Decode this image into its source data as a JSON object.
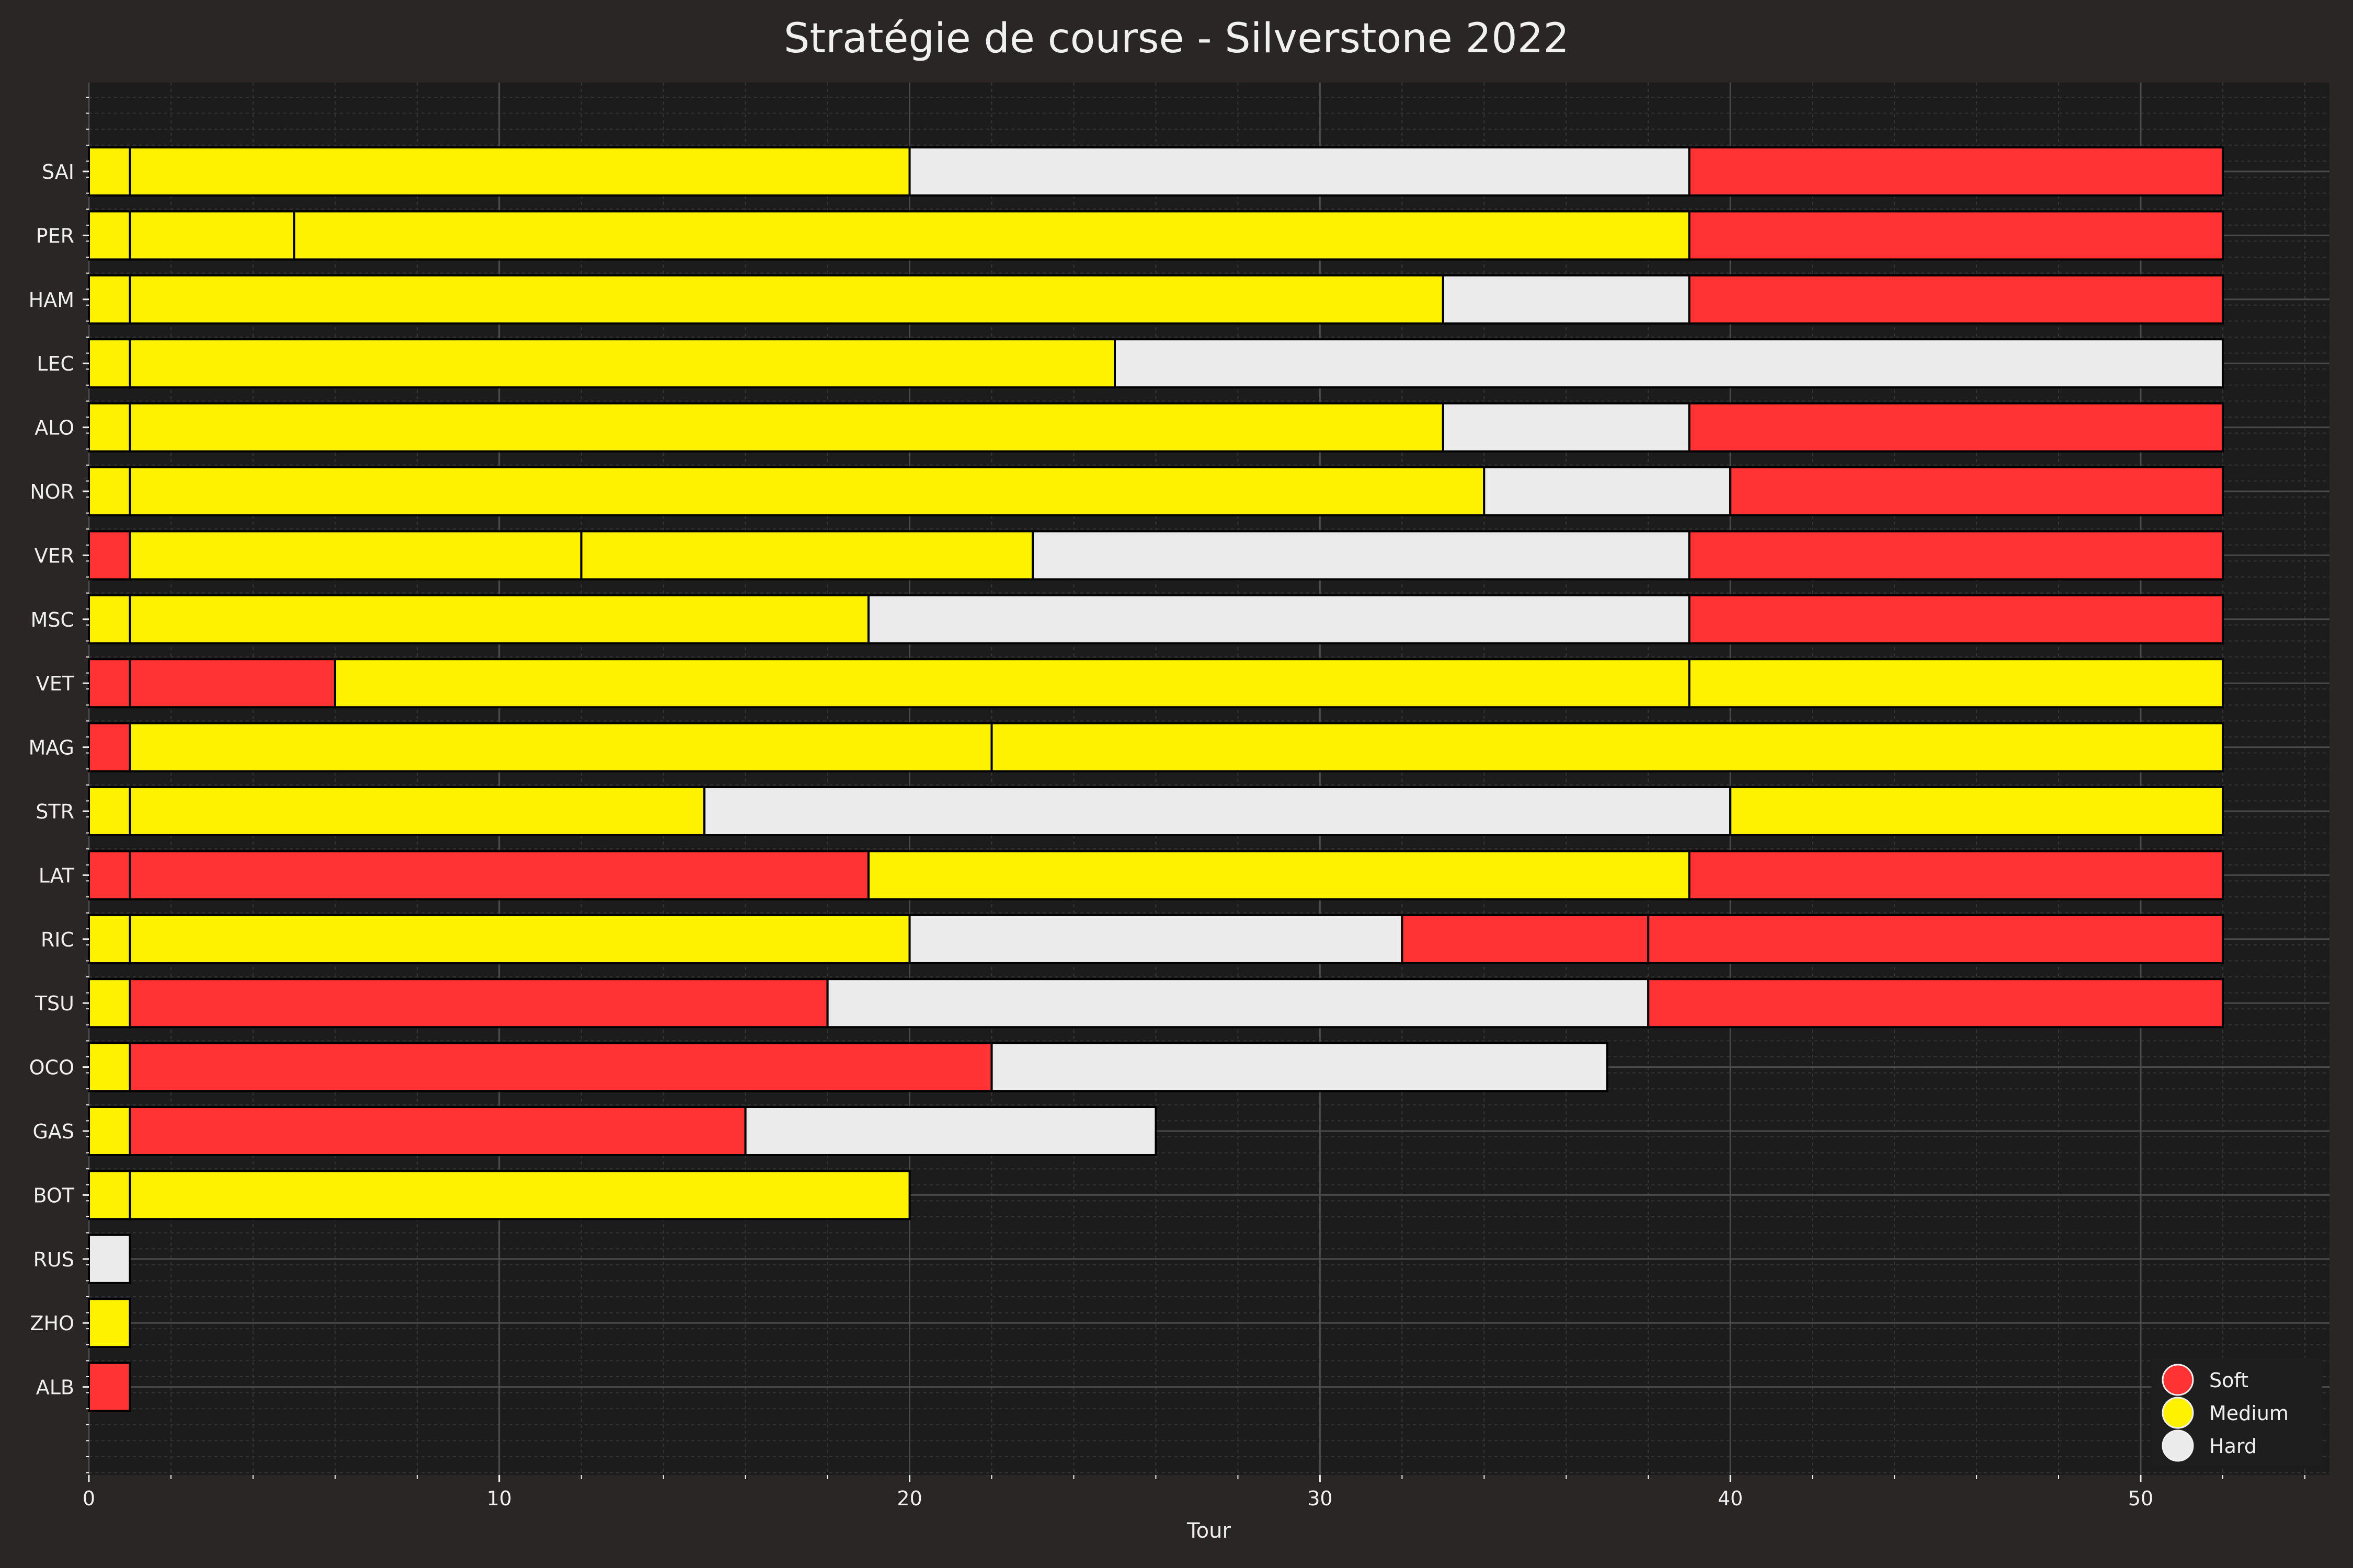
{
  "chart_data": {
    "type": "bar",
    "orientation": "horizontal-stacked",
    "title": "Stratégie de course - Silverstone 2022",
    "xlabel": "Tour",
    "ylabel": "",
    "xlim": [
      0,
      54.6
    ],
    "xticks": [
      0,
      10,
      20,
      30,
      40,
      50
    ],
    "grid": true,
    "legend_position": "bottom-right",
    "compounds": [
      {
        "name": "Soft",
        "color": "#ff3333"
      },
      {
        "name": "Medium",
        "color": "#fff200"
      },
      {
        "name": "Hard",
        "color": "#ebebeb"
      }
    ],
    "drivers": [
      {
        "driver": "SAI",
        "stints": [
          {
            "compound": "Medium",
            "start": 0,
            "end": 1
          },
          {
            "compound": "Medium",
            "start": 1,
            "end": 20
          },
          {
            "compound": "Hard",
            "start": 20,
            "end": 39
          },
          {
            "compound": "Soft",
            "start": 39,
            "end": 52
          }
        ]
      },
      {
        "driver": "PER",
        "stints": [
          {
            "compound": "Medium",
            "start": 0,
            "end": 1
          },
          {
            "compound": "Medium",
            "start": 1,
            "end": 5
          },
          {
            "compound": "Medium",
            "start": 5,
            "end": 39
          },
          {
            "compound": "Soft",
            "start": 39,
            "end": 52
          }
        ]
      },
      {
        "driver": "HAM",
        "stints": [
          {
            "compound": "Medium",
            "start": 0,
            "end": 1
          },
          {
            "compound": "Medium",
            "start": 1,
            "end": 33
          },
          {
            "compound": "Hard",
            "start": 33,
            "end": 39
          },
          {
            "compound": "Soft",
            "start": 39,
            "end": 52
          }
        ]
      },
      {
        "driver": "LEC",
        "stints": [
          {
            "compound": "Medium",
            "start": 0,
            "end": 1
          },
          {
            "compound": "Medium",
            "start": 1,
            "end": 25
          },
          {
            "compound": "Hard",
            "start": 25,
            "end": 52
          }
        ]
      },
      {
        "driver": "ALO",
        "stints": [
          {
            "compound": "Medium",
            "start": 0,
            "end": 1
          },
          {
            "compound": "Medium",
            "start": 1,
            "end": 33
          },
          {
            "compound": "Hard",
            "start": 33,
            "end": 39
          },
          {
            "compound": "Soft",
            "start": 39,
            "end": 52
          }
        ]
      },
      {
        "driver": "NOR",
        "stints": [
          {
            "compound": "Medium",
            "start": 0,
            "end": 1
          },
          {
            "compound": "Medium",
            "start": 1,
            "end": 34
          },
          {
            "compound": "Hard",
            "start": 34,
            "end": 40
          },
          {
            "compound": "Soft",
            "start": 40,
            "end": 52
          }
        ]
      },
      {
        "driver": "VER",
        "stints": [
          {
            "compound": "Soft",
            "start": 0,
            "end": 1
          },
          {
            "compound": "Medium",
            "start": 1,
            "end": 12
          },
          {
            "compound": "Medium",
            "start": 12,
            "end": 23
          },
          {
            "compound": "Hard",
            "start": 23,
            "end": 39
          },
          {
            "compound": "Soft",
            "start": 39,
            "end": 52
          }
        ]
      },
      {
        "driver": "MSC",
        "stints": [
          {
            "compound": "Medium",
            "start": 0,
            "end": 1
          },
          {
            "compound": "Medium",
            "start": 1,
            "end": 19
          },
          {
            "compound": "Hard",
            "start": 19,
            "end": 39
          },
          {
            "compound": "Soft",
            "start": 39,
            "end": 52
          }
        ]
      },
      {
        "driver": "VET",
        "stints": [
          {
            "compound": "Soft",
            "start": 0,
            "end": 1
          },
          {
            "compound": "Soft",
            "start": 1,
            "end": 6
          },
          {
            "compound": "Medium",
            "start": 6,
            "end": 39
          },
          {
            "compound": "Medium",
            "start": 39,
            "end": 52
          }
        ]
      },
      {
        "driver": "MAG",
        "stints": [
          {
            "compound": "Soft",
            "start": 0,
            "end": 1
          },
          {
            "compound": "Medium",
            "start": 1,
            "end": 22
          },
          {
            "compound": "Medium",
            "start": 22,
            "end": 52
          }
        ]
      },
      {
        "driver": "STR",
        "stints": [
          {
            "compound": "Medium",
            "start": 0,
            "end": 1
          },
          {
            "compound": "Medium",
            "start": 1,
            "end": 15
          },
          {
            "compound": "Hard",
            "start": 15,
            "end": 40
          },
          {
            "compound": "Medium",
            "start": 40,
            "end": 52
          }
        ]
      },
      {
        "driver": "LAT",
        "stints": [
          {
            "compound": "Soft",
            "start": 0,
            "end": 1
          },
          {
            "compound": "Soft",
            "start": 1,
            "end": 19
          },
          {
            "compound": "Medium",
            "start": 19,
            "end": 39
          },
          {
            "compound": "Soft",
            "start": 39,
            "end": 52
          }
        ]
      },
      {
        "driver": "RIC",
        "stints": [
          {
            "compound": "Medium",
            "start": 0,
            "end": 1
          },
          {
            "compound": "Medium",
            "start": 1,
            "end": 20
          },
          {
            "compound": "Hard",
            "start": 20,
            "end": 32
          },
          {
            "compound": "Soft",
            "start": 32,
            "end": 38
          },
          {
            "compound": "Soft",
            "start": 38,
            "end": 52
          }
        ]
      },
      {
        "driver": "TSU",
        "stints": [
          {
            "compound": "Medium",
            "start": 0,
            "end": 1
          },
          {
            "compound": "Soft",
            "start": 1,
            "end": 18
          },
          {
            "compound": "Hard",
            "start": 18,
            "end": 38
          },
          {
            "compound": "Soft",
            "start": 38,
            "end": 52
          }
        ]
      },
      {
        "driver": "OCO",
        "stints": [
          {
            "compound": "Medium",
            "start": 0,
            "end": 1
          },
          {
            "compound": "Soft",
            "start": 1,
            "end": 22
          },
          {
            "compound": "Hard",
            "start": 22,
            "end": 37
          }
        ]
      },
      {
        "driver": "GAS",
        "stints": [
          {
            "compound": "Medium",
            "start": 0,
            "end": 1
          },
          {
            "compound": "Soft",
            "start": 1,
            "end": 16
          },
          {
            "compound": "Hard",
            "start": 16,
            "end": 26
          }
        ]
      },
      {
        "driver": "BOT",
        "stints": [
          {
            "compound": "Medium",
            "start": 0,
            "end": 1
          },
          {
            "compound": "Medium",
            "start": 1,
            "end": 20
          }
        ]
      },
      {
        "driver": "RUS",
        "stints": [
          {
            "compound": "Hard",
            "start": 0,
            "end": 1
          }
        ]
      },
      {
        "driver": "ZHO",
        "stints": [
          {
            "compound": "Medium",
            "start": 0,
            "end": 1
          }
        ]
      },
      {
        "driver": "ALB",
        "stints": [
          {
            "compound": "Soft",
            "start": 0,
            "end": 1
          }
        ]
      }
    ]
  }
}
